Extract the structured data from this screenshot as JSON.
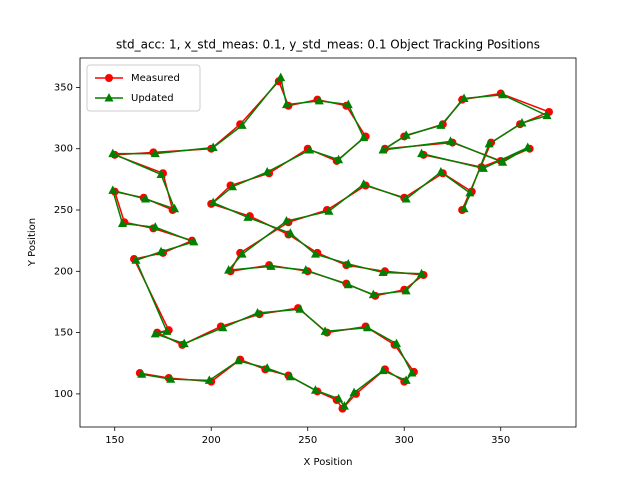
{
  "chart_data": {
    "type": "line",
    "title": "std_acc: 1, x_std_meas: 0.1, y_std_meas: 0.1 Object Tracking Positions",
    "xlabel": "X Position",
    "ylabel": "Y Position",
    "xlim": [
      132,
      389
    ],
    "ylim": [
      73,
      374
    ],
    "xticks": [
      150,
      200,
      250,
      300,
      350
    ],
    "yticks": [
      100,
      150,
      200,
      250,
      300,
      350
    ],
    "grid": false,
    "legend": "upper left",
    "series": [
      {
        "name": "Measured",
        "color": "#ff0000",
        "marker": "circle",
        "x": [
          163,
          178,
          200,
          215,
          228,
          240,
          255,
          265,
          268,
          275,
          290,
          300,
          305,
          295,
          280,
          260,
          245,
          225,
          205,
          185,
          172,
          178,
          160,
          175,
          190,
          170,
          155,
          150,
          165,
          180,
          175,
          150,
          170,
          200,
          215,
          235,
          240,
          255,
          270,
          280,
          265,
          250,
          230,
          210,
          200,
          220,
          240,
          255,
          270,
          290,
          310,
          300,
          285,
          270,
          250,
          230,
          210,
          215,
          240,
          260,
          280,
          300,
          320,
          335,
          330,
          345,
          360,
          375,
          350,
          330,
          320,
          300,
          290,
          325,
          350,
          365,
          340,
          310
        ],
        "values": [
          117,
          113,
          110,
          128,
          120,
          115,
          102,
          95,
          88,
          100,
          120,
          110,
          118,
          140,
          155,
          150,
          170,
          165,
          155,
          140,
          150,
          152,
          210,
          215,
          225,
          235,
          240,
          265,
          260,
          250,
          280,
          295,
          297,
          300,
          320,
          355,
          335,
          340,
          335,
          310,
          290,
          300,
          280,
          270,
          255,
          245,
          230,
          215,
          205,
          200,
          197,
          185,
          180,
          190,
          200,
          205,
          200,
          215,
          240,
          250,
          270,
          260,
          280,
          265,
          250,
          305,
          320,
          330,
          345,
          340,
          320,
          310,
          300,
          305,
          290,
          300,
          285,
          295
        ]
      },
      {
        "name": "Updated",
        "color": "#008000",
        "marker": "triangle",
        "x": [
          164,
          179,
          199,
          214,
          229,
          241,
          254,
          266,
          269,
          274,
          289,
          301,
          304,
          296,
          281,
          259,
          246,
          224,
          206,
          186,
          171,
          177,
          161,
          174,
          191,
          171,
          154,
          149,
          166,
          181,
          174,
          149,
          171,
          201,
          216,
          236,
          239,
          256,
          271,
          279,
          266,
          251,
          229,
          211,
          201,
          219,
          241,
          254,
          271,
          289,
          309,
          301,
          284,
          271,
          249,
          231,
          209,
          216,
          239,
          261,
          279,
          301,
          319,
          334,
          331,
          344,
          361,
          374,
          351,
          331,
          319,
          301,
          289,
          324,
          351,
          364,
          341,
          309
        ],
        "values": [
          116,
          112,
          111,
          127,
          121,
          114,
          103,
          96,
          90,
          101,
          119,
          111,
          117,
          141,
          154,
          151,
          169,
          166,
          154,
          141,
          149,
          151,
          209,
          216,
          224,
          236,
          239,
          266,
          259,
          251,
          279,
          296,
          296,
          301,
          319,
          358,
          336,
          339,
          336,
          309,
          291,
          299,
          281,
          269,
          256,
          244,
          231,
          214,
          206,
          199,
          198,
          184,
          181,
          189,
          201,
          204,
          201,
          214,
          241,
          249,
          271,
          259,
          281,
          264,
          251,
          304,
          321,
          327,
          344,
          341,
          319,
          311,
          299,
          306,
          289,
          301,
          284,
          296
        ]
      }
    ]
  }
}
